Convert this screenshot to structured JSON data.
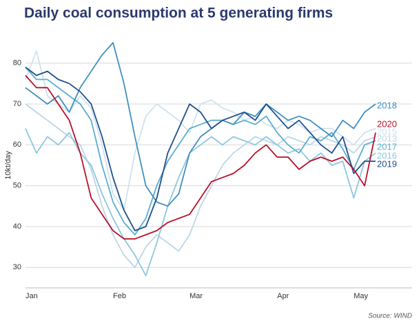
{
  "chart_data": {
    "type": "line",
    "title": "Daily coal consumption at 5 generating firms",
    "y_label": "10kt/day",
    "source": "Source: WIND",
    "categories": [
      "Jan",
      null,
      null,
      null,
      null,
      null,
      null,
      null,
      "Feb",
      null,
      null,
      null,
      null,
      null,
      null,
      "Mar",
      null,
      null,
      null,
      null,
      null,
      null,
      null,
      "Apr",
      null,
      null,
      null,
      null,
      null,
      null,
      "May",
      null,
      null
    ],
    "ylim": [
      25,
      85
    ],
    "yticks": [
      30,
      40,
      50,
      60,
      70,
      80
    ],
    "grid": true,
    "series": [
      {
        "name": "2013",
        "color": "#bcd6e6",
        "values": [
          70,
          68,
          66,
          64,
          62,
          60,
          54,
          45,
          38,
          33,
          30,
          35,
          38,
          36,
          34,
          38,
          45,
          50,
          55,
          58,
          60,
          62,
          61,
          60,
          62,
          61,
          60,
          62,
          61,
          60,
          58,
          61,
          62
        ]
      },
      {
        "name": "2015",
        "color": "#cfe2ee",
        "values": [
          76,
          83,
          72,
          70,
          68,
          72,
          69,
          60,
          48,
          44,
          58,
          67,
          70,
          68,
          66,
          63,
          70,
          71,
          69,
          68,
          66,
          67,
          65,
          64,
          66,
          65,
          63,
          64,
          64,
          62,
          60,
          63,
          64
        ]
      },
      {
        "name": "2016",
        "color": "#8ec6de",
        "values": [
          64,
          58,
          62,
          60,
          63,
          58,
          55,
          48,
          42,
          37,
          33,
          28,
          36,
          45,
          52,
          58,
          60,
          62,
          60,
          62,
          61,
          60,
          62,
          60,
          58,
          59,
          56,
          58,
          55,
          56,
          47,
          56,
          58
        ]
      },
      {
        "name": "2017",
        "color": "#5aaed0",
        "values": [
          79,
          76,
          76,
          74,
          72,
          70,
          66,
          55,
          46,
          41,
          38,
          42,
          50,
          56,
          60,
          64,
          65,
          66,
          66,
          65,
          66,
          65,
          67,
          63,
          60,
          58,
          62,
          61,
          63,
          59,
          54,
          60,
          61
        ]
      },
      {
        "name": "2018",
        "color": "#3f8fc0",
        "values": [
          74,
          72,
          70,
          72,
          68,
          74,
          78,
          82,
          85,
          75,
          62,
          50,
          46,
          45,
          48,
          58,
          62,
          64,
          66,
          65,
          68,
          67,
          70,
          68,
          66,
          67,
          66,
          64,
          62,
          66,
          64,
          68,
          70
        ]
      },
      {
        "name": "2019",
        "color": "#1f4f8e",
        "values": [
          79,
          77,
          78,
          76,
          75,
          73,
          70,
          62,
          52,
          44,
          39,
          40,
          47,
          58,
          64,
          70,
          68,
          64,
          66,
          67,
          68,
          66,
          70,
          67,
          64,
          66,
          63,
          60,
          58,
          62,
          53,
          56,
          56
        ]
      },
      {
        "name": "2020",
        "color": "#b8102a",
        "values": [
          77,
          74,
          74,
          70,
          66,
          58,
          47,
          43,
          39,
          37,
          37,
          38,
          39,
          41,
          42,
          43,
          47,
          51,
          52,
          53,
          55,
          58,
          60,
          57,
          57,
          54,
          56,
          57,
          56,
          57,
          54,
          50,
          63
        ]
      }
    ]
  }
}
